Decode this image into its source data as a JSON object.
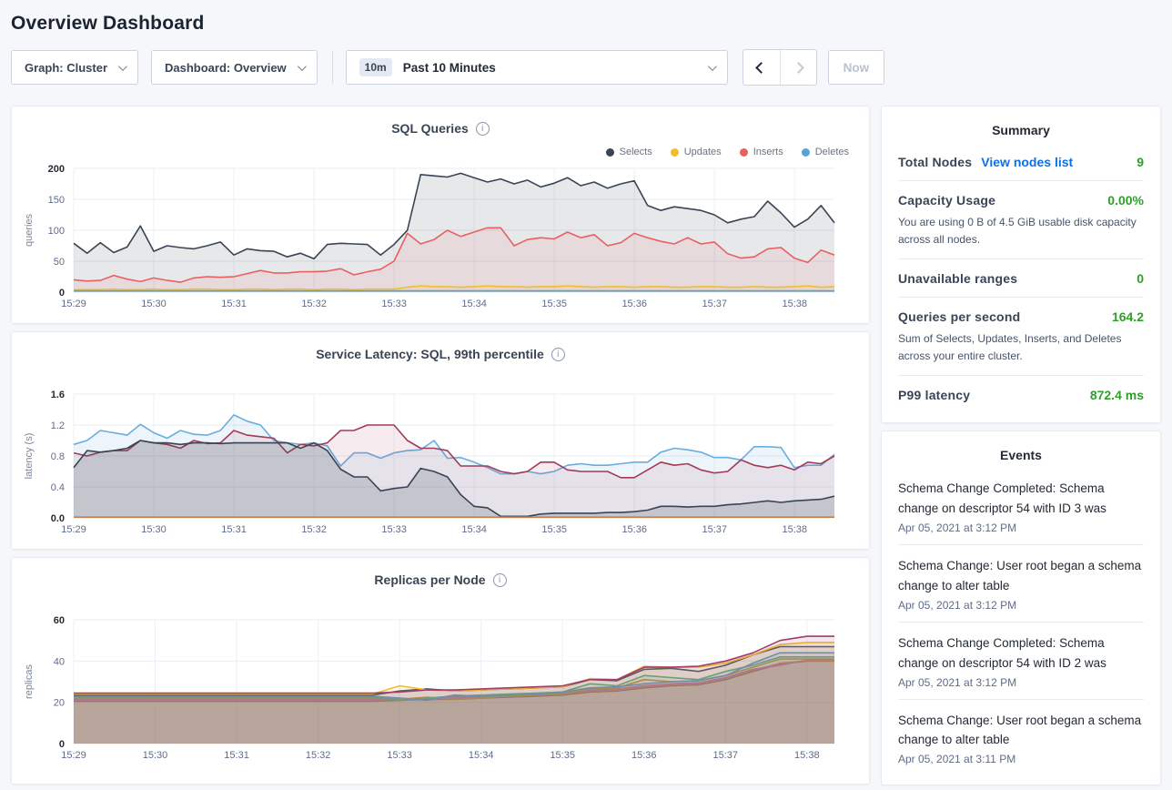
{
  "page": {
    "title": "Overview Dashboard"
  },
  "toolbar": {
    "graph_dropdown": "Graph: Cluster",
    "dashboard_dropdown": "Dashboard: Overview",
    "time_badge": "10m",
    "time_label": "Past 10 Minutes",
    "now_button": "Now"
  },
  "summary": {
    "title": "Summary",
    "rows": [
      {
        "label": "Total Nodes",
        "link": "View nodes list",
        "value": "9"
      },
      {
        "label": "Capacity Usage",
        "value": "0.00%",
        "subtext": "You are using 0 B of 4.5 GiB usable disk capacity across all nodes."
      },
      {
        "label": "Unavailable ranges",
        "value": "0"
      },
      {
        "label": "Queries per second",
        "value": "164.2",
        "subtext": "Sum of Selects, Updates, Inserts, and Deletes across your entire cluster."
      },
      {
        "label": "P99 latency",
        "value": "872.4 ms"
      }
    ]
  },
  "events": {
    "title": "Events",
    "items": [
      {
        "text": "Schema Change Completed: Schema change on descriptor 54 with ID 3 was",
        "time": "Apr 05, 2021 at 3:12 PM"
      },
      {
        "text": "Schema Change: User root began a schema change to alter table",
        "time": "Apr 05, 2021 at 3:12 PM"
      },
      {
        "text": "Schema Change Completed: Schema change on descriptor 54 with ID 2 was",
        "time": "Apr 05, 2021 at 3:12 PM"
      },
      {
        "text": "Schema Change: User root began a schema change to alter table",
        "time": "Apr 05, 2021 at 3:11 PM"
      }
    ]
  },
  "colors": {
    "accent_link": "#0f6fe5",
    "success_green": "#2f9e2a",
    "selects": "#394455",
    "updates": "#f2be2c",
    "inserts": "#ea5f61",
    "deletes": "#55a3db"
  },
  "chart_data": [
    {
      "type": "line",
      "title": "SQL Queries",
      "ylabel": "queries",
      "ylim": [
        0,
        200
      ],
      "yticks": [
        0,
        50,
        100,
        150,
        200
      ],
      "ytick_labels": [
        "0",
        "50",
        "100",
        "150",
        "200"
      ],
      "x_labels": [
        "15:29",
        "15:30",
        "15:31",
        "15:32",
        "15:33",
        "15:34",
        "15:35",
        "15:36",
        "15:37",
        "15:38"
      ],
      "label_frac": 0.1053,
      "legend": true,
      "legend_position": "top-right",
      "series": [
        {
          "name": "Selects",
          "color": "#394455",
          "fill_opacity": 0.12,
          "values": [
            79,
            63,
            80,
            64,
            73,
            107,
            66,
            75,
            72,
            70,
            75,
            81,
            60,
            70,
            67,
            66,
            57,
            63,
            54,
            77,
            79,
            78,
            77,
            60,
            77,
            100,
            190,
            188,
            186,
            192,
            185,
            178,
            183,
            175,
            181,
            170,
            176,
            185,
            172,
            178,
            168,
            175,
            180,
            140,
            132,
            138,
            135,
            132,
            125,
            112,
            118,
            122,
            147,
            128,
            105,
            118,
            140,
            112
          ]
        },
        {
          "name": "Inserts",
          "color": "#ea5f61",
          "fill_opacity": 0.1,
          "values": [
            20,
            18,
            19,
            27,
            21,
            17,
            23,
            19,
            16,
            23,
            25,
            24,
            25,
            30,
            35,
            31,
            31,
            33,
            33,
            34,
            38,
            28,
            33,
            37,
            50,
            95,
            78,
            85,
            100,
            90,
            97,
            104,
            104,
            75,
            85,
            88,
            86,
            97,
            88,
            93,
            75,
            80,
            95,
            88,
            82,
            78,
            88,
            78,
            81,
            62,
            55,
            57,
            70,
            72,
            55,
            48,
            68,
            60
          ]
        },
        {
          "name": "Updates",
          "color": "#f2be2c",
          "fill_opacity": 0.1,
          "values": [
            4,
            4,
            4,
            5,
            4,
            4,
            5,
            4,
            4,
            5,
            5,
            4,
            4,
            5,
            5,
            4,
            5,
            5,
            4,
            5,
            5,
            4,
            5,
            5,
            5,
            8,
            10,
            9,
            9,
            8,
            9,
            10,
            9,
            9,
            8,
            9,
            9,
            10,
            9,
            8,
            9,
            9,
            8,
            9,
            9,
            8,
            8,
            9,
            9,
            8,
            8,
            9,
            8,
            8,
            9,
            10,
            8,
            9
          ]
        },
        {
          "name": "Deletes",
          "color": "#55a3db",
          "fill_opacity": 0.1,
          "values": [
            2,
            2,
            2,
            2,
            2,
            2,
            2,
            2,
            2,
            2,
            2,
            2,
            2,
            2,
            2,
            2,
            2,
            2,
            2,
            2,
            2,
            2,
            2,
            2,
            2,
            2,
            2,
            2,
            2,
            2,
            2,
            2,
            2,
            2,
            2,
            2,
            2,
            2,
            2,
            2,
            2,
            2,
            2,
            2,
            2,
            2,
            2,
            2,
            2,
            2,
            2,
            2,
            2,
            2,
            2,
            2,
            2,
            2
          ]
        }
      ],
      "legend_order": [
        "Selects",
        "Updates",
        "Inserts",
        "Deletes"
      ]
    },
    {
      "type": "line",
      "title": "Service Latency: SQL, 99th percentile",
      "ylabel": "latency (s)",
      "ylim": [
        0,
        1.6
      ],
      "yticks": [
        0,
        0.4,
        0.8,
        1.2,
        1.6
      ],
      "ytick_labels": [
        "0.0",
        "0.4",
        "0.8",
        "1.2",
        "1.6"
      ],
      "x_labels": [
        "15:29",
        "15:30",
        "15:31",
        "15:32",
        "15:33",
        "15:34",
        "15:35",
        "15:36",
        "15:37",
        "15:38"
      ],
      "label_frac": 0.1053,
      "legend": false,
      "series": [
        {
          "color": "#6aaede",
          "fill_opacity": 0.12,
          "values": [
            0.95,
            1.0,
            1.13,
            1.1,
            1.07,
            1.21,
            1.1,
            1.03,
            1.13,
            1.08,
            1.07,
            1.13,
            1.33,
            1.25,
            1.2,
            1.0,
            0.97,
            0.95,
            0.97,
            0.93,
            0.67,
            0.84,
            0.84,
            0.77,
            0.84,
            0.87,
            0.88,
            1.0,
            0.77,
            0.78,
            0.72,
            0.65,
            0.57,
            0.57,
            0.6,
            0.57,
            0.6,
            0.68,
            0.7,
            0.68,
            0.68,
            0.7,
            0.72,
            0.72,
            0.85,
            0.9,
            0.88,
            0.85,
            0.78,
            0.78,
            0.75,
            0.92,
            0.92,
            0.91,
            0.65,
            0.68,
            0.68,
            0.82
          ]
        },
        {
          "color": "#a23b56",
          "fill_opacity": 0.1,
          "values": [
            0.84,
            0.8,
            0.85,
            0.87,
            0.87,
            1.0,
            0.97,
            0.95,
            0.9,
            1.0,
            0.96,
            0.97,
            1.13,
            1.07,
            1.05,
            1.03,
            0.84,
            0.95,
            0.93,
            0.97,
            1.13,
            1.13,
            1.2,
            1.2,
            1.2,
            1.0,
            0.9,
            0.9,
            0.87,
            0.67,
            0.67,
            0.67,
            0.6,
            0.57,
            0.6,
            0.72,
            0.72,
            0.62,
            0.6,
            0.6,
            0.6,
            0.52,
            0.52,
            0.62,
            0.72,
            0.68,
            0.7,
            0.62,
            0.58,
            0.6,
            0.75,
            0.68,
            0.65,
            0.68,
            0.62,
            0.72,
            0.7,
            0.8
          ]
        },
        {
          "color": "#394455",
          "fill_opacity": 0.18,
          "values": [
            0.65,
            0.87,
            0.85,
            0.87,
            0.9,
            1.0,
            0.97,
            0.97,
            0.95,
            0.97,
            0.97,
            0.96,
            0.97,
            0.97,
            0.97,
            0.97,
            0.97,
            0.9,
            0.97,
            0.87,
            0.63,
            0.53,
            0.53,
            0.35,
            0.38,
            0.4,
            0.64,
            0.6,
            0.53,
            0.3,
            0.15,
            0.13,
            0.02,
            0.02,
            0.02,
            0.05,
            0.06,
            0.06,
            0.06,
            0.06,
            0.07,
            0.07,
            0.08,
            0.1,
            0.15,
            0.15,
            0.14,
            0.15,
            0.15,
            0.17,
            0.18,
            0.2,
            0.22,
            0.2,
            0.22,
            0.23,
            0.24,
            0.28
          ]
        },
        {
          "color": "#c47f4e",
          "fill_opacity": 0,
          "values": [
            0.01,
            0.01,
            0.01,
            0.01,
            0.01,
            0.01,
            0.01,
            0.01,
            0.01,
            0.01,
            0.01,
            0.01,
            0.01,
            0.01,
            0.01,
            0.01,
            0.01,
            0.01,
            0.01,
            0.01,
            0.01,
            0.01,
            0.01,
            0.01,
            0.01,
            0.01,
            0.01,
            0.01,
            0.01,
            0.01,
            0.01,
            0.01,
            0.01,
            0.01,
            0.01,
            0.01,
            0.01,
            0.01,
            0.01,
            0.01,
            0.01,
            0.01,
            0.01,
            0.01,
            0.01,
            0.01,
            0.01,
            0.01,
            0.01,
            0.01,
            0.01,
            0.01,
            0.01,
            0.01,
            0.01,
            0.01,
            0.01,
            0.01
          ]
        }
      ]
    },
    {
      "type": "line",
      "title": "Replicas per Node",
      "ylabel": "replicas",
      "ylim": [
        0,
        60
      ],
      "yticks": [
        0,
        20,
        40,
        60
      ],
      "ytick_labels": [
        "0",
        "20",
        "40",
        "60"
      ],
      "x_labels": [
        "15:29",
        "15:30",
        "15:31",
        "15:32",
        "15:33",
        "15:34",
        "15:35",
        "15:36",
        "15:37",
        "15:38"
      ],
      "label_frac": 0.1071,
      "legend": false,
      "series": [
        {
          "color": "#8a6a58",
          "fill_opacity": 0.12,
          "values": [
            20.5,
            20.5,
            20.5,
            20.5,
            20.5,
            20.5,
            20.5,
            20.5,
            20.5,
            20.5,
            20.5,
            20.5,
            21,
            21.5,
            21.5,
            22,
            22.5,
            23,
            23.5,
            25,
            25.5,
            27,
            28,
            28.5,
            31,
            35,
            38.5,
            40,
            40
          ]
        },
        {
          "color": "#e08070",
          "fill_opacity": 0.12,
          "values": [
            21,
            21,
            21,
            21,
            21,
            21,
            21,
            21,
            21,
            21,
            21,
            21,
            21.5,
            22,
            22,
            22.5,
            23,
            23.5,
            24,
            25.5,
            26,
            27.5,
            28.5,
            29,
            31.5,
            35.5,
            39,
            40,
            40
          ]
        },
        {
          "color": "#e06ab8",
          "fill_opacity": 0.12,
          "values": [
            21.5,
            21.5,
            21.5,
            21.5,
            21.5,
            21.5,
            21.5,
            21.5,
            21.5,
            21.5,
            21.5,
            21.5,
            22,
            21,
            22.5,
            23,
            23.5,
            24,
            24.5,
            26,
            26.5,
            28,
            29,
            29.5,
            32,
            36,
            38,
            40.5,
            40.5
          ]
        },
        {
          "color": "#c09a3e",
          "fill_opacity": 0.12,
          "values": [
            22,
            22,
            22,
            22,
            22,
            22,
            22,
            22,
            22,
            22,
            22,
            22,
            21.5,
            22.5,
            21.5,
            22,
            23,
            23.5,
            24,
            26.5,
            27,
            31,
            30,
            30.5,
            33,
            37,
            41,
            41,
            41
          ]
        },
        {
          "color": "#5ab586",
          "fill_opacity": 0.12,
          "values": [
            22.5,
            22.5,
            22.5,
            22.5,
            22.5,
            22.5,
            22.5,
            22.5,
            22.5,
            22.5,
            22.5,
            22.5,
            21,
            22,
            23,
            23.5,
            24,
            24.5,
            25,
            29,
            28,
            33,
            32,
            31,
            35,
            38,
            42,
            42,
            42
          ]
        },
        {
          "color": "#5a9fd8",
          "fill_opacity": 0.12,
          "values": [
            23,
            23,
            23,
            23,
            23,
            23,
            23,
            23,
            23,
            23,
            23,
            23,
            22,
            21,
            23.5,
            23,
            23.5,
            24,
            25,
            27,
            27.5,
            29,
            30,
            30.5,
            33,
            39,
            44,
            44,
            44
          ]
        },
        {
          "color": "#455068",
          "fill_opacity": 0.12,
          "values": [
            23.5,
            23.5,
            23.5,
            23.5,
            23.5,
            23.5,
            23.5,
            23.5,
            23.5,
            23.5,
            23.5,
            23.5,
            25.5,
            26.5,
            25.5,
            26,
            26.5,
            27,
            27.5,
            31,
            30.5,
            36,
            36.5,
            35,
            38,
            43,
            47,
            47,
            47
          ]
        },
        {
          "color": "#f2be2c",
          "fill_opacity": 0.12,
          "values": [
            24,
            24,
            24,
            24,
            24,
            24,
            24,
            24,
            24,
            24,
            24,
            24,
            28,
            26,
            25.5,
            26,
            26.5,
            27,
            27.5,
            31.5,
            31,
            37.5,
            37,
            37,
            39,
            43,
            48,
            49,
            49
          ]
        },
        {
          "color": "#a03c6e",
          "fill_opacity": 0.12,
          "values": [
            24.5,
            24.5,
            24.5,
            24.5,
            24.5,
            24.5,
            24.5,
            24.5,
            24.5,
            24.5,
            24.5,
            24.5,
            25,
            26,
            26,
            26.5,
            27,
            27.5,
            28,
            31,
            31,
            37,
            37,
            37.5,
            40,
            44,
            50,
            52,
            52
          ]
        }
      ]
    }
  ]
}
